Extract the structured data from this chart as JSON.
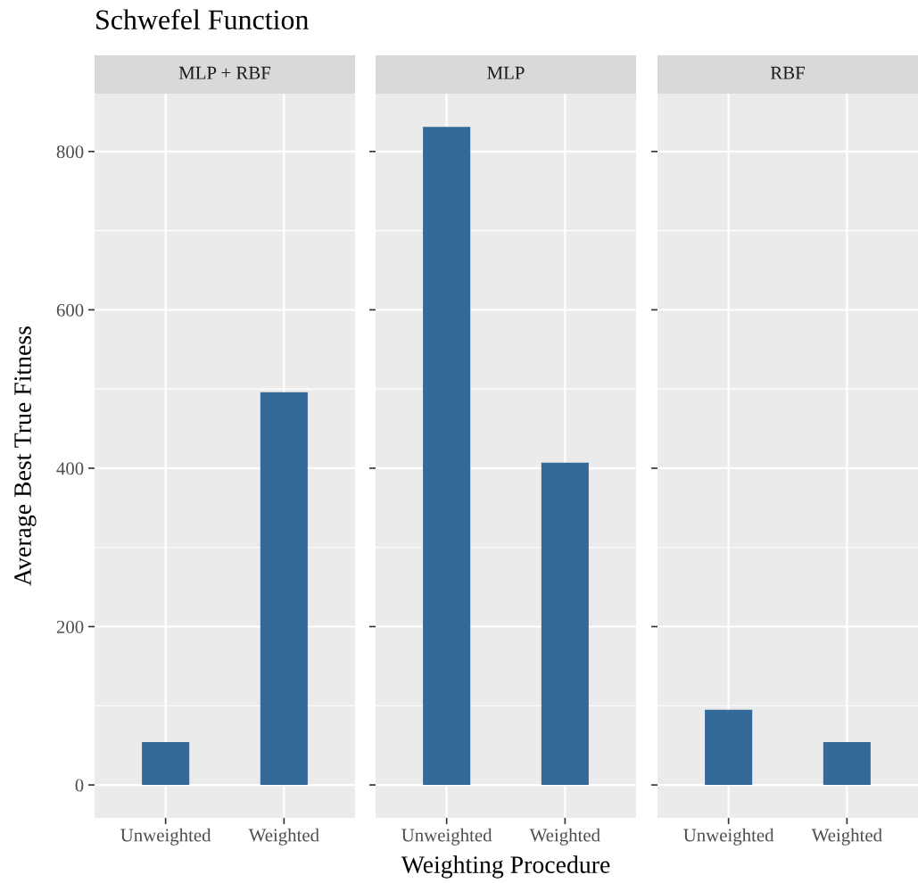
{
  "chart_data": [
    {
      "type": "bar",
      "title": "MLP + RBF",
      "annotations": [
        "Schwefel Function"
      ],
      "ylabel": "Average Best True Fitness",
      "categories": [
        "Unweighted",
        "Weighted"
      ],
      "values": [
        54,
        496
      ],
      "color": "#336a98",
      "ylim": [
        -41.6,
        873
      ],
      "yticks": [
        0,
        200,
        400,
        600,
        800
      ],
      "grid": true
    },
    {
      "type": "bar",
      "title": "MLP",
      "xlabel": "Weighting Procedure",
      "categories": [
        "Unweighted",
        "Weighted"
      ],
      "values": [
        831,
        407
      ],
      "color": "#336a98",
      "ylim": [
        -41.6,
        873
      ],
      "yticks": [
        0,
        200,
        400,
        600,
        800
      ],
      "grid": true,
      "tick_labels": "x"
    },
    {
      "type": "bar",
      "title": "RBF",
      "categories": [
        "Unweighted",
        "Weighted"
      ],
      "values": [
        95,
        54
      ],
      "color": "#336a98",
      "ylim": [
        -41.6,
        873
      ],
      "yticks": [
        0,
        200,
        400,
        600,
        800
      ],
      "grid": true,
      "tick_labels": "x"
    }
  ]
}
